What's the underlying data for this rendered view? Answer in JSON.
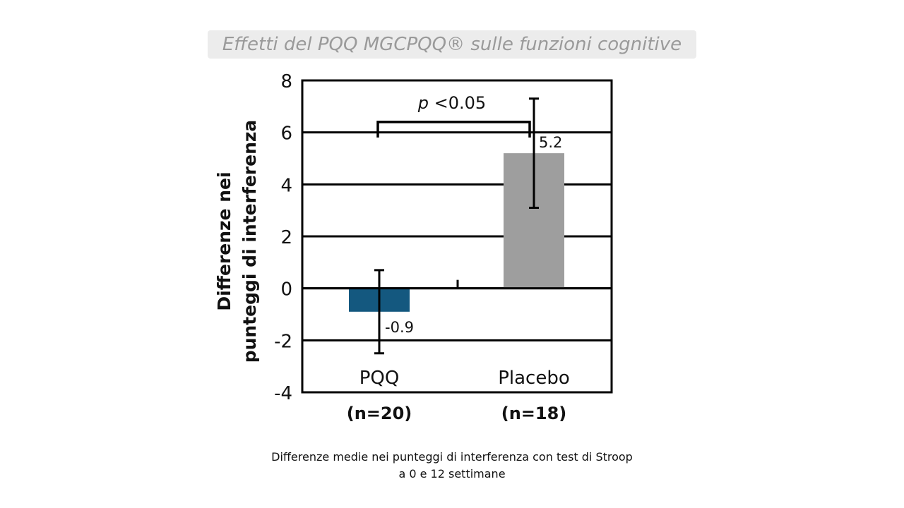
{
  "slide": {
    "title": "Effetti del PQQ MGCPQQ® sulle funzioni cognitive",
    "caption_line1": "Differenze  medie  nei punteggi di interferenza  con test di Stroop",
    "caption_line2": "a 0 e 12 settimane"
  },
  "chart_data": {
    "type": "bar",
    "title": "Effetti del PQQ MGCPQQ® sulle funzioni cognitive",
    "xlabel": "",
    "ylabel_line1": "Differenze nei",
    "ylabel_line2": "punteggi di interferenza",
    "ylim": [
      -4,
      8
    ],
    "yticks": [
      8,
      6,
      4,
      2,
      0,
      -2,
      -4
    ],
    "grid": true,
    "categories": [
      "PQQ",
      "Placebo"
    ],
    "category_n": [
      "(n=20)",
      "(n=18)"
    ],
    "values": [
      -0.9,
      5.2
    ],
    "value_labels": [
      "-0.9",
      "5.2"
    ],
    "error_bars": [
      {
        "low": -2.5,
        "high": 0.7
      },
      {
        "low": 3.1,
        "high": 7.3
      }
    ],
    "bar_colors": [
      "#14587f",
      "#9e9e9e"
    ],
    "significance": {
      "label_italic": "p",
      "label_rest": " <0.05",
      "level": 6.4
    }
  }
}
